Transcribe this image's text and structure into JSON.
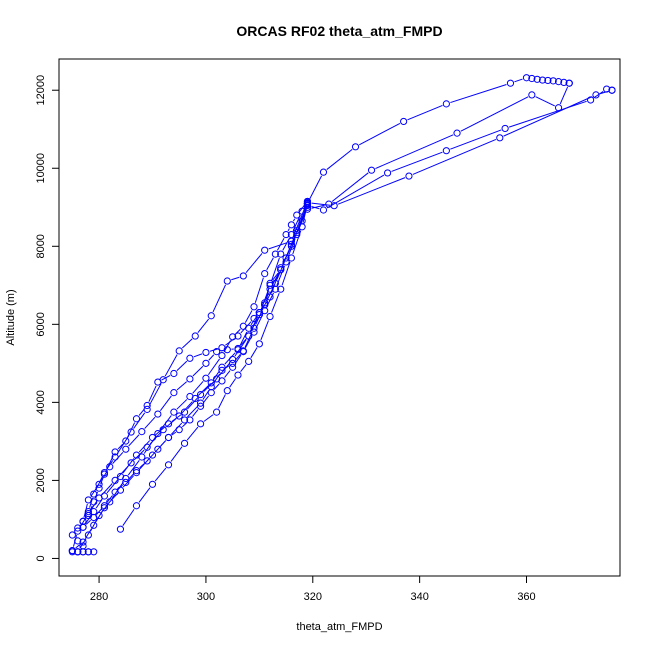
{
  "chart_data": {
    "type": "line",
    "title": "ORCAS RF02 theta_atm_FMPD",
    "xlabel": "theta_atm_FMPD",
    "ylabel": "Altitude (m)",
    "xlim": [
      272.5,
      377.5
    ],
    "ylim": [
      -450,
      12800
    ],
    "xticks": [
      280,
      300,
      320,
      340,
      360
    ],
    "yticks": [
      0,
      2000,
      4000,
      6000,
      8000,
      10000,
      12000
    ],
    "grid": false,
    "legend": "none",
    "marker": "open-circle",
    "color": "#0000ff",
    "series": [
      {
        "x": [
          319,
          322,
          328,
          337,
          345,
          357,
          360,
          361,
          362,
          363,
          364,
          365,
          366,
          367,
          368
        ],
        "y": [
          9100,
          9900,
          10550,
          11200,
          11650,
          12180,
          12320,
          12300,
          12280,
          12260,
          12250,
          12240,
          12220,
          12200,
          12180
        ]
      },
      {
        "x": [
          368,
          366,
          361,
          347,
          331,
          323,
          319
        ],
        "y": [
          12180,
          11550,
          11880,
          10900,
          9950,
          9080,
          8950
        ]
      },
      {
        "x": [
          319,
          322,
          334,
          345,
          356,
          372,
          375,
          376
        ],
        "y": [
          9050,
          8930,
          9880,
          10450,
          11020,
          11750,
          12030,
          12000
        ]
      },
      {
        "x": [
          376,
          373,
          355,
          338,
          324,
          319
        ],
        "y": [
          12000,
          11880,
          10780,
          9800,
          9040,
          9120
        ]
      },
      {
        "x": [
          319,
          318,
          316,
          314,
          312,
          311,
          310,
          309,
          306,
          303,
          300,
          297,
          294,
          291,
          289,
          287,
          285,
          283,
          281,
          280,
          279,
          278
        ],
        "y": [
          9100,
          8650,
          8050,
          7400,
          7050,
          6500,
          6300,
          6150,
          5700,
          5400,
          5280,
          5130,
          4740,
          4520,
          3920,
          3580,
          3010,
          2730,
          2160,
          1800,
          1450,
          1100
        ]
      },
      {
        "x": [
          278,
          277,
          276,
          275,
          276,
          277,
          278,
          277,
          276,
          275,
          276,
          277,
          278,
          279
        ],
        "y": [
          1100,
          950,
          780,
          600,
          450,
          320,
          170,
          170,
          170,
          170,
          170,
          170,
          170,
          170
        ]
      },
      {
        "x": [
          276,
          278,
          280,
          282,
          285,
          288,
          291,
          294,
          297,
          300,
          303,
          305,
          307,
          309,
          311,
          313,
          315,
          316,
          317,
          319
        ],
        "y": [
          170,
          600,
          1100,
          1450,
          2050,
          2600,
          3200,
          3750,
          4150,
          4620,
          5200,
          5680,
          5950,
          6450,
          7300,
          7800,
          8300,
          8550,
          8800,
          9150
        ]
      },
      {
        "x": [
          319,
          316,
          311,
          307,
          304,
          301,
          298,
          295,
          292,
          289,
          286,
          283,
          281,
          279,
          278,
          277
        ],
        "y": [
          9150,
          8130,
          7900,
          7240,
          7110,
          6220,
          5700,
          5320,
          4580,
          3820,
          3240,
          2600,
          2200,
          1650,
          1200,
          950
        ]
      },
      {
        "x": [
          277,
          278,
          280,
          282,
          285,
          288,
          291,
          294,
          297,
          300,
          302,
          304,
          306,
          308,
          310,
          312,
          314,
          316,
          318,
          319
        ],
        "y": [
          950,
          1500,
          1900,
          2350,
          2800,
          3250,
          3700,
          4250,
          4600,
          5000,
          5300,
          5350,
          5380,
          5700,
          6250,
          7000,
          7800,
          8300,
          8900,
          9100
        ]
      },
      {
        "x": [
          319,
          317,
          314,
          312,
          311,
          310,
          308,
          306,
          303,
          301,
          298,
          295,
          292,
          289,
          286,
          283,
          280,
          278,
          276,
          275
        ],
        "y": [
          9100,
          8350,
          7400,
          6900,
          6550,
          6300,
          5900,
          5350,
          4900,
          4500,
          4100,
          3650,
          3300,
          2850,
          2450,
          2000,
          1550,
          1150,
          700,
          200
        ]
      },
      {
        "x": [
          275,
          277,
          279,
          281,
          284,
          287,
          290,
          293,
          296,
          299,
          301,
          303,
          305,
          307,
          309,
          311,
          313,
          315,
          317,
          319
        ],
        "y": [
          200,
          420,
          850,
          1300,
          1750,
          2200,
          2650,
          3100,
          3550,
          3980,
          4400,
          4820,
          5000,
          5320,
          5900,
          6500,
          7050,
          7700,
          8400,
          9050
        ]
      },
      {
        "x": [
          319,
          316,
          314,
          312,
          310,
          308,
          305,
          302,
          299,
          296,
          293,
          290,
          287,
          284,
          281,
          279,
          277
        ],
        "y": [
          9050,
          8000,
          7450,
          6700,
          6300,
          5700,
          5100,
          4600,
          4200,
          3750,
          3450,
          3100,
          2650,
          2100,
          1600,
          1200,
          800
        ]
      },
      {
        "x": [
          277,
          279,
          281,
          283,
          285,
          287,
          289,
          291,
          293,
          295,
          297,
          299,
          301,
          303,
          305,
          307,
          309,
          311,
          313,
          315,
          317,
          319
        ],
        "y": [
          800,
          1050,
          1350,
          1700,
          1950,
          2250,
          2500,
          2800,
          3100,
          3300,
          3550,
          3900,
          4250,
          4550,
          4900,
          5300,
          5800,
          6350,
          6900,
          7600,
          8300,
          9000
        ]
      },
      {
        "x": [
          284,
          287,
          290,
          293,
          296,
          299,
          302,
          304,
          306,
          308,
          310,
          312,
          314,
          316,
          318,
          319
        ],
        "y": [
          750,
          1350,
          1900,
          2400,
          2950,
          3450,
          3750,
          4300,
          4700,
          5050,
          5500,
          6200,
          6900,
          7700,
          8500,
          9080
        ]
      }
    ]
  }
}
